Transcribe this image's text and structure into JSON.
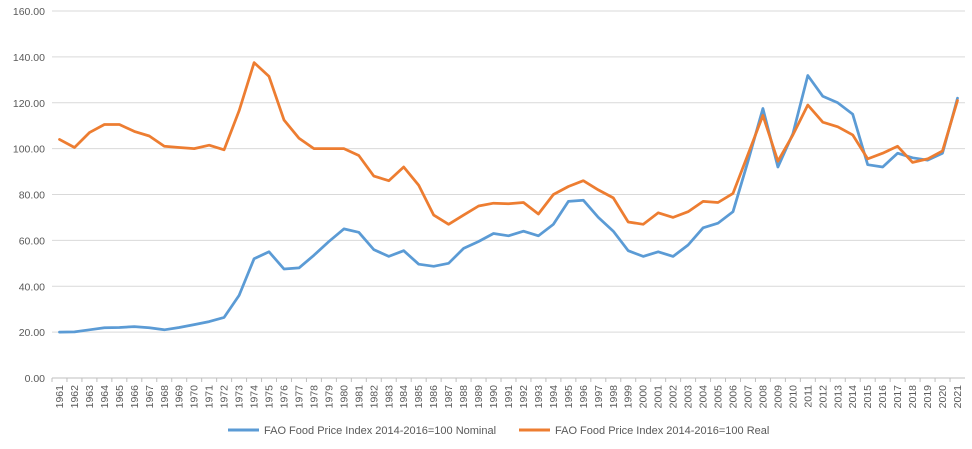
{
  "chart_data": {
    "type": "line",
    "title": "",
    "xlabel": "",
    "ylabel": "",
    "ylim": [
      0,
      160
    ],
    "y_ticks": [
      "0.00",
      "20.00",
      "40.00",
      "60.00",
      "80.00",
      "100.00",
      "120.00",
      "140.00",
      "160.00"
    ],
    "y_tick_values": [
      0,
      20,
      40,
      60,
      80,
      100,
      120,
      140,
      160
    ],
    "grid": true,
    "legend_position": "bottom",
    "x": [
      "1961",
      "1962",
      "1963",
      "1964",
      "1965",
      "1966",
      "1967",
      "1968",
      "1969",
      "1970",
      "1971",
      "1972",
      "1973",
      "1974",
      "1975",
      "1976",
      "1977",
      "1978",
      "1979",
      "1980",
      "1981",
      "1982",
      "1983",
      "1984",
      "1985",
      "1986",
      "1987",
      "1988",
      "1989",
      "1990",
      "1991",
      "1992",
      "1993",
      "1994",
      "1995",
      "1996",
      "1997",
      "1998",
      "1999",
      "2000",
      "2001",
      "2002",
      "2003",
      "2004",
      "2005",
      "2006",
      "2007",
      "2008",
      "2009",
      "2010",
      "2011",
      "2012",
      "2013",
      "2014",
      "2015",
      "2016",
      "2017",
      "2018",
      "2019",
      "2020",
      "2021"
    ],
    "series": [
      {
        "name": "FAO Food Price Index 2014-2016=100 Nominal",
        "color": "#5b9bd5",
        "values": [
          20.0,
          20.1,
          21.0,
          21.9,
          22.0,
          22.4,
          21.9,
          21.0,
          22.0,
          23.3,
          24.6,
          26.4,
          36.0,
          52.0,
          55.0,
          47.5,
          48.0,
          53.5,
          59.5,
          65.0,
          63.5,
          56.0,
          53.0,
          55.5,
          49.6,
          48.7,
          50.0,
          56.5,
          59.5,
          63.0,
          62.0,
          64.0,
          62.0,
          67.0,
          77.0,
          77.5,
          70.0,
          64.0,
          55.5,
          53.0,
          55.0,
          53.0,
          58.0,
          65.5,
          67.5,
          72.5,
          94.5,
          117.5,
          92.0,
          106.5,
          131.9,
          122.8,
          120.0,
          115.0,
          93.0,
          92.0,
          98.0,
          96.0,
          95.0,
          98.0,
          122.0
        ]
      },
      {
        "name": "FAO Food Price Index 2014-2016=100 Real",
        "color": "#ed7d31",
        "values": [
          104.0,
          100.5,
          107.0,
          110.5,
          110.5,
          107.5,
          105.5,
          101.0,
          100.5,
          100.0,
          101.5,
          99.5,
          116.5,
          137.5,
          131.5,
          112.5,
          104.5,
          100.0,
          100.0,
          100.0,
          97.0,
          88.0,
          86.0,
          92.0,
          84.0,
          71.0,
          67.0,
          71.0,
          75.0,
          76.2,
          76.0,
          76.5,
          71.5,
          80.0,
          83.5,
          86.0,
          82.0,
          78.5,
          68.0,
          67.0,
          72.0,
          70.0,
          72.5,
          77.0,
          76.5,
          80.5,
          97.5,
          114.5,
          94.5,
          106.0,
          119.0,
          111.5,
          109.5,
          106.0,
          95.5,
          98.0,
          101.0,
          94.0,
          95.5,
          99.0,
          121.0
        ]
      }
    ]
  }
}
